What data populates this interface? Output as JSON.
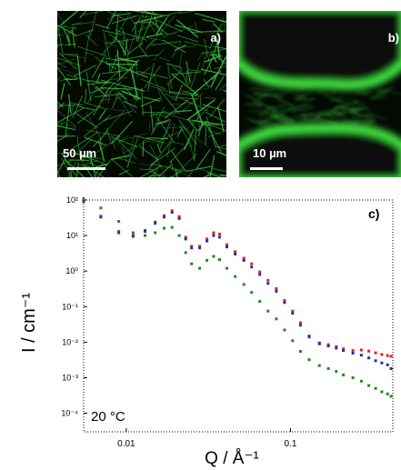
{
  "panels": {
    "a": {
      "label": "a)",
      "scale_bar": "50 µm",
      "color": "#3ec83e"
    },
    "b": {
      "label": "b)",
      "scale_bar": "10 µm",
      "color": "#3ec83e"
    }
  },
  "chart_data": {
    "type": "scatter",
    "panel_label": "c)",
    "annotation": "20 °C",
    "ylabel": "I / cm⁻¹",
    "xlabel": "Q / Å⁻¹",
    "xscale": "log",
    "yscale": "log",
    "xlim": [
      0.0055,
      0.42
    ],
    "ylim": [
      3e-05,
      100
    ],
    "xticks": [
      {
        "value": 0.01,
        "label": "0.01"
      },
      {
        "value": 0.1,
        "label": "0.1"
      }
    ],
    "yticks": [
      {
        "value": 100,
        "label": "10²"
      },
      {
        "value": 10,
        "label": "10¹"
      },
      {
        "value": 1,
        "label": "10⁰"
      },
      {
        "value": 0.1,
        "label": "10⁻¹"
      },
      {
        "value": 0.01,
        "label": "10⁻²"
      },
      {
        "value": 0.001,
        "label": "10⁻³"
      },
      {
        "value": 0.0001,
        "label": "10⁻⁴"
      }
    ],
    "series": [
      {
        "color": "#e82020",
        "x": [
          0.0055,
          0.007,
          0.009,
          0.011,
          0.013,
          0.015,
          0.017,
          0.019,
          0.021,
          0.023,
          0.025,
          0.028,
          0.031,
          0.034,
          0.037,
          0.041,
          0.046,
          0.052,
          0.058,
          0.065,
          0.073,
          0.082,
          0.092,
          0.103,
          0.115,
          0.13,
          0.15,
          0.17,
          0.19,
          0.21,
          0.24,
          0.27,
          0.3,
          0.33,
          0.36,
          0.39,
          0.41
        ],
        "y": [
          95,
          35,
          13,
          10,
          14,
          24,
          36,
          50,
          34,
          9,
          5,
          5,
          8,
          12,
          11,
          5.5,
          3.5,
          2.3,
          1.6,
          0.95,
          0.55,
          0.32,
          0.15,
          0.075,
          0.035,
          0.015,
          0.0095,
          0.0085,
          0.0075,
          0.0065,
          0.0058,
          0.006,
          0.0056,
          0.005,
          0.0045,
          0.0042,
          0.004
        ]
      },
      {
        "color": "#2030b0",
        "x": [
          0.0055,
          0.007,
          0.009,
          0.011,
          0.013,
          0.015,
          0.017,
          0.019,
          0.021,
          0.023,
          0.025,
          0.028,
          0.031,
          0.034,
          0.037,
          0.041,
          0.046,
          0.052,
          0.058,
          0.065,
          0.073,
          0.082,
          0.092,
          0.103,
          0.115,
          0.13,
          0.15,
          0.17,
          0.19,
          0.21,
          0.24,
          0.27,
          0.3,
          0.33,
          0.36,
          0.39,
          0.41
        ],
        "y": [
          90,
          33,
          12,
          9.5,
          13,
          22,
          33,
          45,
          30,
          8,
          4.5,
          4.5,
          7,
          10,
          9,
          4.8,
          3,
          2,
          1.3,
          0.8,
          0.45,
          0.27,
          0.13,
          0.065,
          0.03,
          0.014,
          0.009,
          0.0078,
          0.0068,
          0.0058,
          0.0049,
          0.0043,
          0.0036,
          0.003,
          0.0026,
          0.0023,
          0.0018
        ]
      },
      {
        "color": "#1e8a1e",
        "x": [
          0.0055,
          0.007,
          0.009,
          0.011,
          0.013,
          0.015,
          0.017,
          0.019,
          0.021,
          0.023,
          0.025,
          0.028,
          0.031,
          0.034,
          0.037,
          0.041,
          0.046,
          0.052,
          0.058,
          0.065,
          0.073,
          0.082,
          0.092,
          0.103,
          0.115,
          0.13,
          0.15,
          0.17,
          0.19,
          0.21,
          0.24,
          0.27,
          0.3,
          0.33,
          0.36,
          0.39,
          0.41
        ],
        "y": [
          110,
          60,
          25,
          12,
          10,
          12,
          16,
          17,
          10,
          3.3,
          1.6,
          1.2,
          2,
          2.6,
          2.1,
          1.2,
          0.7,
          0.42,
          0.25,
          0.14,
          0.075,
          0.045,
          0.022,
          0.011,
          0.0055,
          0.0032,
          0.0022,
          0.0018,
          0.0015,
          0.0012,
          0.001,
          0.0008,
          0.0006,
          0.0005,
          0.0004,
          0.00035,
          0.0003
        ]
      }
    ]
  }
}
